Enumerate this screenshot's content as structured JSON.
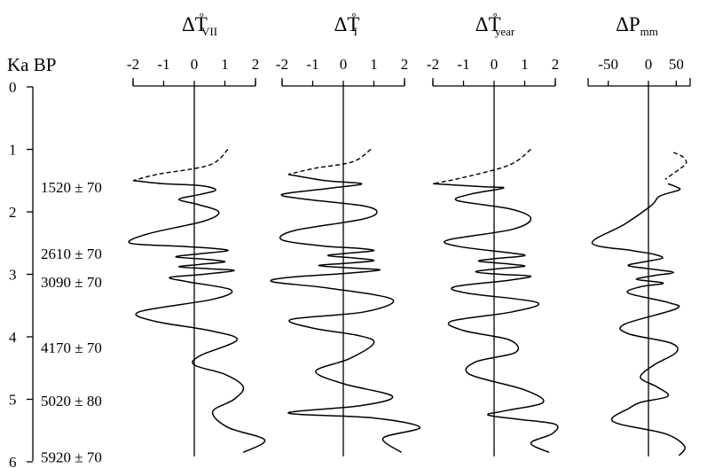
{
  "chart_data": {
    "type": "line",
    "orientation": "vertical-depth",
    "y_axis": {
      "label": "Ka BP",
      "ticks": [
        "0",
        "1",
        "2",
        "3",
        "4",
        "5",
        "6"
      ],
      "ylim": [
        0,
        6
      ],
      "direction": "down"
    },
    "dates": [
      "1520 ± 70",
      "2610 ± 70",
      "3090 ± 70",
      "4170 ± 70",
      "5020 ± 80",
      "5920 ± 70"
    ],
    "panels": [
      {
        "id": "tvii",
        "title": {
          "main": "ΔT",
          "sup": "°",
          "sub": "VII"
        },
        "xlim": [
          -2,
          2
        ],
        "tick_labels": [
          "-2",
          "-1",
          "0",
          "1",
          "2"
        ],
        "dashed": [
          [
            1.1,
            1.0
          ],
          [
            0.5,
            1.25
          ],
          [
            -1.2,
            1.4
          ],
          [
            -2.0,
            1.5
          ]
        ],
        "solid": [
          [
            -2.0,
            1.5
          ],
          [
            -1.0,
            1.55
          ],
          [
            0.2,
            1.58
          ],
          [
            0.7,
            1.65
          ],
          [
            0.2,
            1.72
          ],
          [
            -0.5,
            1.8
          ],
          [
            0.1,
            1.88
          ],
          [
            0.8,
            2.0
          ],
          [
            0.3,
            2.15
          ],
          [
            -1.5,
            2.35
          ],
          [
            -2.1,
            2.5
          ],
          [
            -0.5,
            2.55
          ],
          [
            0.5,
            2.58
          ],
          [
            1.1,
            2.62
          ],
          [
            0.2,
            2.67
          ],
          [
            -0.6,
            2.72
          ],
          [
            0.4,
            2.76
          ],
          [
            1.0,
            2.8
          ],
          [
            0.2,
            2.84
          ],
          [
            -0.5,
            2.88
          ],
          [
            0.5,
            2.91
          ],
          [
            1.3,
            2.94
          ],
          [
            0.3,
            3.0
          ],
          [
            -0.8,
            3.05
          ],
          [
            -0.2,
            3.12
          ],
          [
            1.2,
            3.25
          ],
          [
            0.6,
            3.4
          ],
          [
            -1.8,
            3.6
          ],
          [
            -1.3,
            3.75
          ],
          [
            0.5,
            3.9
          ],
          [
            1.4,
            4.05
          ],
          [
            0.2,
            4.3
          ],
          [
            0.0,
            4.45
          ],
          [
            1.0,
            4.6
          ],
          [
            1.6,
            4.8
          ],
          [
            1.3,
            5.0
          ],
          [
            0.6,
            5.2
          ],
          [
            1.1,
            5.45
          ],
          [
            2.3,
            5.65
          ],
          [
            1.6,
            5.85
          ]
        ]
      },
      {
        "id": "ti",
        "title": {
          "main": "ΔT",
          "sup": "°",
          "sub": "I"
        },
        "xlim": [
          -2,
          2
        ],
        "tick_labels": [
          "-2",
          "-1",
          "0",
          "1",
          "2"
        ],
        "dashed": [
          [
            0.9,
            1.0
          ],
          [
            0.3,
            1.2
          ],
          [
            -0.9,
            1.3
          ],
          [
            -1.8,
            1.4
          ]
        ],
        "solid": [
          [
            -1.8,
            1.4
          ],
          [
            -0.6,
            1.5
          ],
          [
            0.6,
            1.55
          ],
          [
            -0.4,
            1.62
          ],
          [
            -2.0,
            1.72
          ],
          [
            -1.2,
            1.8
          ],
          [
            0.6,
            1.9
          ],
          [
            1.1,
            2.0
          ],
          [
            0.6,
            2.12
          ],
          [
            -1.6,
            2.3
          ],
          [
            -2.0,
            2.45
          ],
          [
            -0.6,
            2.55
          ],
          [
            0.4,
            2.58
          ],
          [
            1.0,
            2.62
          ],
          [
            0.2,
            2.66
          ],
          [
            -0.5,
            2.7
          ],
          [
            0.4,
            2.74
          ],
          [
            1.0,
            2.78
          ],
          [
            0.2,
            2.82
          ],
          [
            -0.8,
            2.86
          ],
          [
            0.3,
            2.9
          ],
          [
            1.2,
            2.93
          ],
          [
            0.2,
            2.98
          ],
          [
            -1.8,
            3.05
          ],
          [
            -2.3,
            3.12
          ],
          [
            -0.5,
            3.22
          ],
          [
            1.6,
            3.4
          ],
          [
            0.7,
            3.6
          ],
          [
            -1.7,
            3.72
          ],
          [
            -1.0,
            3.86
          ],
          [
            0.5,
            3.98
          ],
          [
            1.0,
            4.1
          ],
          [
            0.2,
            4.35
          ],
          [
            -0.9,
            4.55
          ],
          [
            0.0,
            4.75
          ],
          [
            1.6,
            4.95
          ],
          [
            0.6,
            5.1
          ],
          [
            -1.8,
            5.22
          ],
          [
            1.0,
            5.3
          ],
          [
            2.5,
            5.45
          ],
          [
            1.3,
            5.62
          ],
          [
            1.9,
            5.85
          ]
        ]
      },
      {
        "id": "tyear",
        "title": {
          "main": "ΔT",
          "sup": "°",
          "sub": "year"
        },
        "xlim": [
          -2,
          2
        ],
        "tick_labels": [
          "-2",
          "-1",
          "0",
          "1",
          "2"
        ],
        "dashed": [
          [
            1.2,
            1.0
          ],
          [
            0.5,
            1.25
          ],
          [
            -1.0,
            1.45
          ],
          [
            -2.0,
            1.55
          ]
        ],
        "solid": [
          [
            -2.0,
            1.55
          ],
          [
            -0.3,
            1.6
          ],
          [
            0.3,
            1.62
          ],
          [
            -0.8,
            1.72
          ],
          [
            -1.2,
            1.82
          ],
          [
            0.5,
            1.95
          ],
          [
            1.2,
            2.1
          ],
          [
            0.6,
            2.28
          ],
          [
            -1.5,
            2.45
          ],
          [
            -1.2,
            2.55
          ],
          [
            0.4,
            2.65
          ],
          [
            1.0,
            2.7
          ],
          [
            0.0,
            2.75
          ],
          [
            -0.5,
            2.79
          ],
          [
            0.4,
            2.83
          ],
          [
            1.0,
            2.87
          ],
          [
            0.1,
            2.91
          ],
          [
            -0.6,
            2.96
          ],
          [
            0.2,
            3.0
          ],
          [
            1.2,
            3.03
          ],
          [
            0.4,
            3.1
          ],
          [
            -1.3,
            3.2
          ],
          [
            -0.9,
            3.3
          ],
          [
            1.4,
            3.45
          ],
          [
            0.6,
            3.6
          ],
          [
            -1.4,
            3.75
          ],
          [
            -1.0,
            3.9
          ],
          [
            0.5,
            4.05
          ],
          [
            0.7,
            4.25
          ],
          [
            -0.6,
            4.4
          ],
          [
            -0.8,
            4.6
          ],
          [
            1.0,
            4.85
          ],
          [
            1.6,
            5.05
          ],
          [
            0.4,
            5.18
          ],
          [
            -0.2,
            5.25
          ],
          [
            0.8,
            5.32
          ],
          [
            2.0,
            5.4
          ],
          [
            1.9,
            5.55
          ],
          [
            1.2,
            5.7
          ],
          [
            1.8,
            5.85
          ]
        ]
      },
      {
        "id": "pmm",
        "title": {
          "main": "ΔP",
          "sup": "",
          "sub": "mm"
        },
        "xlim": [
          -75,
          75
        ],
        "tick_values": [
          -50,
          0,
          50
        ],
        "tick_labels": [
          "-50",
          "0",
          "50"
        ],
        "dashed": [
          [
            45,
            1.05
          ],
          [
            62,
            1.12
          ],
          [
            68,
            1.22
          ],
          [
            55,
            1.32
          ],
          [
            30,
            1.48
          ]
        ],
        "solid": [
          [
            35,
            1.55
          ],
          [
            50,
            1.6
          ],
          [
            55,
            1.65
          ],
          [
            20,
            1.75
          ],
          [
            5,
            1.9
          ],
          [
            -30,
            2.2
          ],
          [
            -70,
            2.5
          ],
          [
            -20,
            2.62
          ],
          [
            10,
            2.68
          ],
          [
            25,
            2.74
          ],
          [
            -5,
            2.8
          ],
          [
            -25,
            2.86
          ],
          [
            10,
            2.92
          ],
          [
            45,
            2.97
          ],
          [
            10,
            3.02
          ],
          [
            -15,
            3.08
          ],
          [
            15,
            3.12
          ],
          [
            25,
            3.15
          ],
          [
            -10,
            3.2
          ],
          [
            -25,
            3.3
          ],
          [
            35,
            3.45
          ],
          [
            50,
            3.55
          ],
          [
            -30,
            3.8
          ],
          [
            -25,
            3.95
          ],
          [
            40,
            4.1
          ],
          [
            50,
            4.25
          ],
          [
            10,
            4.45
          ],
          [
            -10,
            4.65
          ],
          [
            15,
            4.8
          ],
          [
            35,
            4.95
          ],
          [
            -10,
            5.05
          ],
          [
            -25,
            5.15
          ],
          [
            -45,
            5.3
          ],
          [
            -35,
            5.4
          ],
          [
            30,
            5.55
          ],
          [
            65,
            5.75
          ],
          [
            55,
            5.9
          ]
        ]
      }
    ]
  }
}
